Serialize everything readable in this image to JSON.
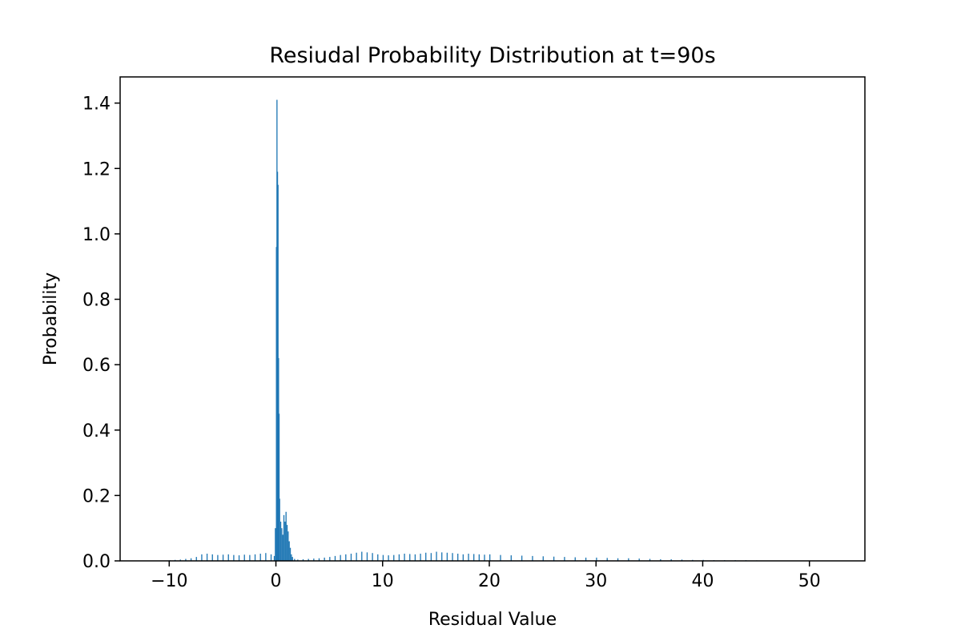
{
  "chart_data": {
    "type": "bar",
    "title": "Resiudal Probability Distribution at t=90s",
    "xlabel": "Residual Value",
    "ylabel": "Probability",
    "xlim": [
      -14.6,
      55.2
    ],
    "ylim": [
      0,
      1.48
    ],
    "xticks": [
      -10,
      0,
      10,
      20,
      30,
      40,
      50
    ],
    "xtick_labels": [
      "−10",
      "0",
      "10",
      "20",
      "30",
      "40",
      "50"
    ],
    "yticks": [
      0.0,
      0.2,
      0.4,
      0.6,
      0.8,
      1.0,
      1.2,
      1.4
    ],
    "ytick_labels": [
      "0.0",
      "0.2",
      "0.4",
      "0.6",
      "0.8",
      "1.0",
      "1.2",
      "1.4"
    ],
    "bar_color": "#1f77b4",
    "bin_width": 0.1,
    "grid": false,
    "legend": "none",
    "x": [
      -10.0,
      -9.5,
      -9.0,
      -8.5,
      -8.0,
      -7.5,
      -7.0,
      -6.5,
      -6.0,
      -5.5,
      -5.0,
      -4.5,
      -4.0,
      -3.5,
      -3.0,
      -2.5,
      -2.0,
      -1.5,
      -1.0,
      -0.5,
      -0.2,
      -0.1,
      0.0,
      0.05,
      0.1,
      0.15,
      0.2,
      0.25,
      0.3,
      0.4,
      0.5,
      0.6,
      0.7,
      0.8,
      0.9,
      1.0,
      1.1,
      1.2,
      1.3,
      1.4,
      1.5,
      1.7,
      2.0,
      2.5,
      3.0,
      3.5,
      4.0,
      4.5,
      5.0,
      5.5,
      6.0,
      6.5,
      7.0,
      7.5,
      8.0,
      8.5,
      9.0,
      9.5,
      10.0,
      10.5,
      11.0,
      11.5,
      12.0,
      12.5,
      13.0,
      13.5,
      14.0,
      14.5,
      15.0,
      15.5,
      16.0,
      16.5,
      17.0,
      17.5,
      18.0,
      18.5,
      19.0,
      19.5,
      20.0,
      21.0,
      22.0,
      23.0,
      24.0,
      25.0,
      26.0,
      27.0,
      28.0,
      29.0,
      30.0,
      31.0,
      32.0,
      33.0,
      34.0,
      35.0,
      36.0,
      37.0,
      38.0,
      39.0,
      40.0,
      41.0,
      42.0,
      43.0,
      44.0,
      45.0,
      47.0,
      50.0,
      52.0
    ],
    "values": [
      0.002,
      0.003,
      0.004,
      0.006,
      0.008,
      0.012,
      0.02,
      0.022,
      0.02,
      0.018,
      0.019,
      0.02,
      0.018,
      0.017,
      0.019,
      0.018,
      0.02,
      0.022,
      0.024,
      0.02,
      0.015,
      0.1,
      0.96,
      1.41,
      1.19,
      1.15,
      0.62,
      0.45,
      0.19,
      0.12,
      0.1,
      0.08,
      0.14,
      0.12,
      0.15,
      0.11,
      0.09,
      0.06,
      0.04,
      0.02,
      0.012,
      0.006,
      0.004,
      0.005,
      0.006,
      0.007,
      0.008,
      0.01,
      0.012,
      0.015,
      0.018,
      0.02,
      0.022,
      0.025,
      0.028,
      0.026,
      0.024,
      0.02,
      0.018,
      0.017,
      0.018,
      0.02,
      0.022,
      0.021,
      0.02,
      0.022,
      0.025,
      0.024,
      0.028,
      0.026,
      0.025,
      0.024,
      0.022,
      0.02,
      0.022,
      0.021,
      0.02,
      0.019,
      0.02,
      0.018,
      0.017,
      0.016,
      0.015,
      0.014,
      0.013,
      0.012,
      0.011,
      0.01,
      0.01,
      0.009,
      0.008,
      0.008,
      0.007,
      0.006,
      0.005,
      0.005,
      0.004,
      0.003,
      0.003,
      0.002,
      0.002,
      0.002,
      0.002,
      0.0015,
      0.001,
      0.001,
      0.001
    ]
  }
}
